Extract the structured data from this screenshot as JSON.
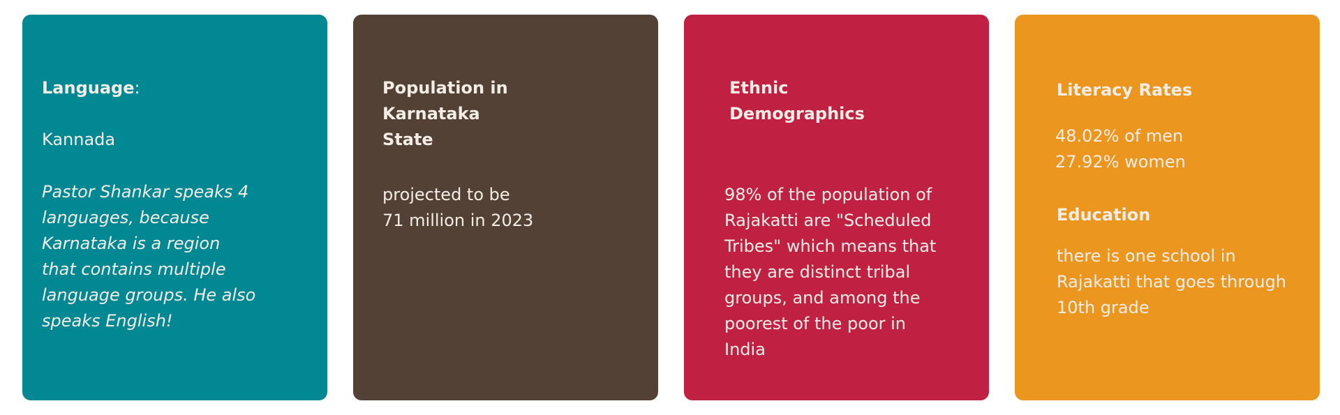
{
  "cards": [
    {
      "id": "language",
      "color": "#018892",
      "heading": "Language",
      "heading_suffix": ":",
      "value": "Kannada",
      "note": "Pastor Shankar speaks 4\nlanguages, because\nKarnataka is a region\nthat contains multiple\nlanguage groups. He also\nspeaks English!"
    },
    {
      "id": "population",
      "color": "#524134",
      "heading": "Population in\nKarnataka\nState",
      "body": "projected to be\n71 million in 2023"
    },
    {
      "id": "ethnic",
      "color": "#c02042",
      "heading": "Ethnic\nDemographics",
      "body": "98% of the population of\nRajakatti are \"Scheduled\nTribes\" which means that\nthey are distinct tribal\ngroups, and among the\npoorest of the poor in\nIndia"
    },
    {
      "id": "literacy",
      "color": "#eb961f",
      "heading": "Literacy Rates",
      "body": "48.02% of men\n27.92% women",
      "subheading": "Education",
      "subbody": "there is one school in\nRajakatti that goes through\n10th grade"
    }
  ]
}
